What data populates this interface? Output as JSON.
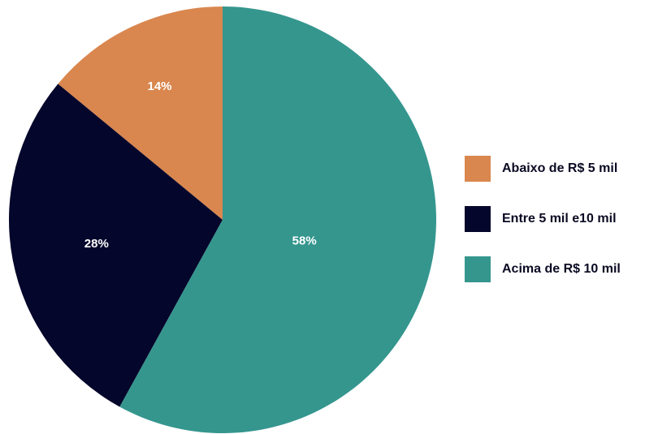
{
  "chart_data": {
    "type": "pie",
    "title": "",
    "slices": [
      {
        "label": "Abaixo de R$ 5 mil",
        "value": 14,
        "display": "14%",
        "color": "#D9874F"
      },
      {
        "label": "Entre 5 mil e10 mil",
        "value": 28,
        "display": "28%",
        "color": "#05062B"
      },
      {
        "label": "Acima de R$ 10 mil",
        "value": 58,
        "display": "58%",
        "color": "#35968E"
      }
    ],
    "start": "top (12 o'clock), slices drawn counter-clockwise in legend order",
    "legend_position": "right"
  }
}
